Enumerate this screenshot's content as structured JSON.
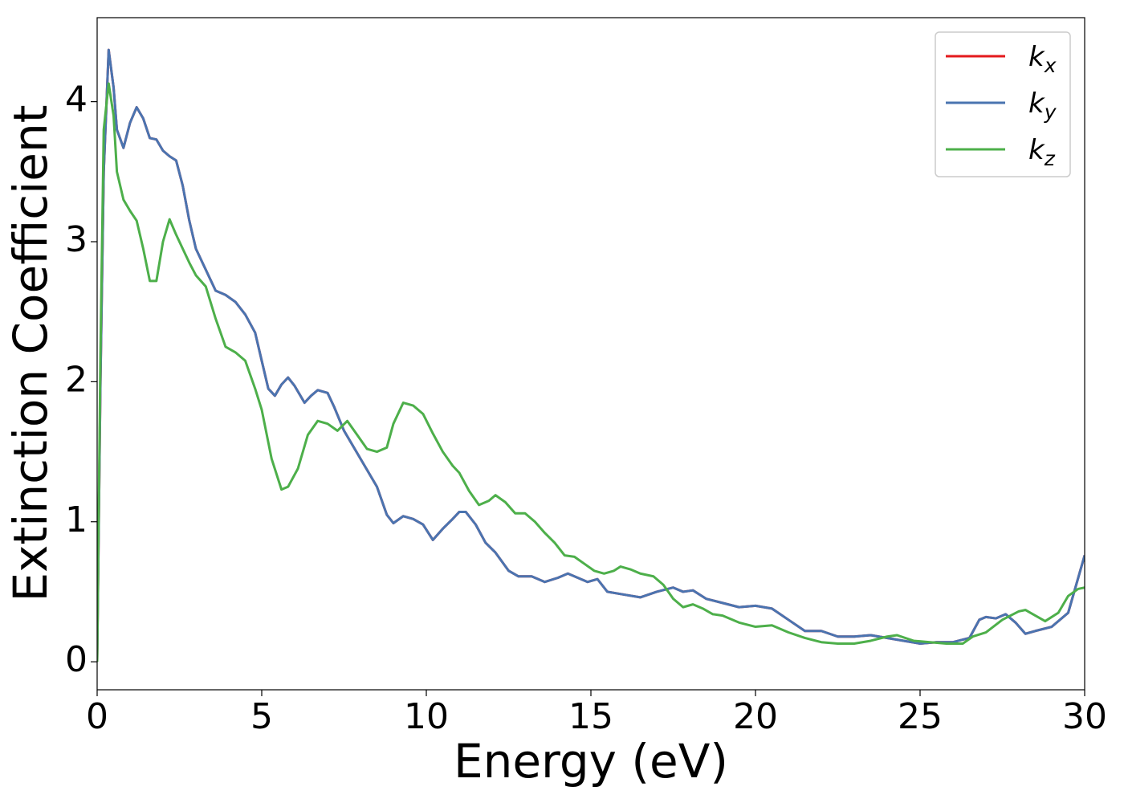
{
  "chart_data": {
    "type": "line",
    "xlabel": "Energy (eV)",
    "ylabel": "Extinction Coefficient",
    "xlim": [
      0,
      30
    ],
    "ylim": [
      -0.2,
      4.6
    ],
    "xticks": [
      0,
      5,
      10,
      15,
      20,
      25,
      30
    ],
    "yticks": [
      0,
      1,
      2,
      3,
      4
    ],
    "grid": false,
    "legend": "upper right",
    "series": [
      {
        "name": "kx",
        "color": "#e41a1c",
        "x": [
          0,
          0.1,
          0.2,
          0.35,
          0.5,
          0.6,
          0.8,
          1.0,
          1.2,
          1.4,
          1.6,
          1.8,
          2.0,
          2.2,
          2.4,
          2.6,
          2.8,
          3.0,
          3.3,
          3.6,
          3.9,
          4.2,
          4.5,
          4.8,
          5.0,
          5.2,
          5.4,
          5.6,
          5.8,
          6.0,
          6.3,
          6.5,
          6.7,
          7.0,
          7.2,
          7.5,
          8.0,
          8.5,
          8.8,
          9.0,
          9.3,
          9.6,
          9.9,
          10.2,
          10.5,
          10.8,
          11.0,
          11.2,
          11.5,
          11.8,
          12.1,
          12.5,
          12.8,
          13.2,
          13.6,
          14.0,
          14.3,
          14.6,
          14.9,
          15.2,
          15.5,
          16.0,
          16.5,
          17.0,
          17.5,
          17.8,
          18.1,
          18.5,
          19.0,
          19.5,
          20.0,
          20.5,
          21.0,
          21.5,
          22.0,
          22.5,
          23.0,
          23.5,
          24.0,
          24.5,
          25.0,
          25.5,
          26.0,
          26.5,
          26.8,
          27.0,
          27.3,
          27.6,
          27.9,
          28.2,
          28.5,
          29.0,
          29.5,
          30.0
        ],
        "values": [
          0,
          2.0,
          3.5,
          4.37,
          4.1,
          3.8,
          3.67,
          3.85,
          3.96,
          3.88,
          3.74,
          3.73,
          3.65,
          3.61,
          3.58,
          3.4,
          3.15,
          2.95,
          2.8,
          2.65,
          2.62,
          2.57,
          2.48,
          2.35,
          2.15,
          1.95,
          1.9,
          1.98,
          2.03,
          1.97,
          1.85,
          1.9,
          1.94,
          1.92,
          1.82,
          1.65,
          1.45,
          1.25,
          1.05,
          0.99,
          1.04,
          1.02,
          0.98,
          0.87,
          0.95,
          1.02,
          1.07,
          1.07,
          0.98,
          0.85,
          0.78,
          0.65,
          0.61,
          0.61,
          0.57,
          0.6,
          0.63,
          0.6,
          0.57,
          0.59,
          0.5,
          0.48,
          0.46,
          0.5,
          0.53,
          0.5,
          0.51,
          0.45,
          0.42,
          0.39,
          0.4,
          0.38,
          0.3,
          0.22,
          0.22,
          0.18,
          0.18,
          0.19,
          0.17,
          0.15,
          0.13,
          0.14,
          0.14,
          0.17,
          0.3,
          0.32,
          0.31,
          0.34,
          0.28,
          0.2,
          0.22,
          0.25,
          0.35,
          0.76
        ]
      },
      {
        "name": "ky",
        "color": "#4a74b0",
        "x": [
          0,
          0.1,
          0.2,
          0.35,
          0.5,
          0.6,
          0.8,
          1.0,
          1.2,
          1.4,
          1.6,
          1.8,
          2.0,
          2.2,
          2.4,
          2.6,
          2.8,
          3.0,
          3.3,
          3.6,
          3.9,
          4.2,
          4.5,
          4.8,
          5.0,
          5.2,
          5.4,
          5.6,
          5.8,
          6.0,
          6.3,
          6.5,
          6.7,
          7.0,
          7.2,
          7.5,
          8.0,
          8.5,
          8.8,
          9.0,
          9.3,
          9.6,
          9.9,
          10.2,
          10.5,
          10.8,
          11.0,
          11.2,
          11.5,
          11.8,
          12.1,
          12.5,
          12.8,
          13.2,
          13.6,
          14.0,
          14.3,
          14.6,
          14.9,
          15.2,
          15.5,
          16.0,
          16.5,
          17.0,
          17.5,
          17.8,
          18.1,
          18.5,
          19.0,
          19.5,
          20.0,
          20.5,
          21.0,
          21.5,
          22.0,
          22.5,
          23.0,
          23.5,
          24.0,
          24.5,
          25.0,
          25.5,
          26.0,
          26.5,
          26.8,
          27.0,
          27.3,
          27.6,
          27.9,
          28.2,
          28.5,
          29.0,
          29.5,
          30.0
        ],
        "values": [
          0,
          2.0,
          3.5,
          4.37,
          4.1,
          3.8,
          3.67,
          3.85,
          3.96,
          3.88,
          3.74,
          3.73,
          3.65,
          3.61,
          3.58,
          3.4,
          3.15,
          2.95,
          2.8,
          2.65,
          2.62,
          2.57,
          2.48,
          2.35,
          2.15,
          1.95,
          1.9,
          1.98,
          2.03,
          1.97,
          1.85,
          1.9,
          1.94,
          1.92,
          1.82,
          1.65,
          1.45,
          1.25,
          1.05,
          0.99,
          1.04,
          1.02,
          0.98,
          0.87,
          0.95,
          1.02,
          1.07,
          1.07,
          0.98,
          0.85,
          0.78,
          0.65,
          0.61,
          0.61,
          0.57,
          0.6,
          0.63,
          0.6,
          0.57,
          0.59,
          0.5,
          0.48,
          0.46,
          0.5,
          0.53,
          0.5,
          0.51,
          0.45,
          0.42,
          0.39,
          0.4,
          0.38,
          0.3,
          0.22,
          0.22,
          0.18,
          0.18,
          0.19,
          0.17,
          0.15,
          0.13,
          0.14,
          0.14,
          0.17,
          0.3,
          0.32,
          0.31,
          0.34,
          0.28,
          0.2,
          0.22,
          0.25,
          0.35,
          0.76
        ]
      },
      {
        "name": "kz",
        "color": "#4daf4a",
        "x": [
          0,
          0.1,
          0.2,
          0.35,
          0.5,
          0.6,
          0.8,
          1.0,
          1.2,
          1.4,
          1.6,
          1.8,
          2.0,
          2.2,
          2.4,
          2.6,
          2.8,
          3.0,
          3.3,
          3.6,
          3.9,
          4.2,
          4.5,
          4.8,
          5.0,
          5.3,
          5.6,
          5.8,
          6.1,
          6.4,
          6.7,
          7.0,
          7.3,
          7.6,
          7.9,
          8.2,
          8.5,
          8.8,
          9.0,
          9.3,
          9.6,
          9.9,
          10.2,
          10.5,
          10.8,
          11.0,
          11.3,
          11.6,
          11.9,
          12.1,
          12.4,
          12.7,
          13.0,
          13.3,
          13.6,
          13.9,
          14.2,
          14.5,
          14.8,
          15.1,
          15.4,
          15.7,
          15.9,
          16.2,
          16.5,
          16.9,
          17.2,
          17.5,
          17.8,
          18.1,
          18.4,
          18.7,
          19.0,
          19.5,
          20.0,
          20.5,
          21.0,
          21.5,
          22.0,
          22.5,
          23.0,
          23.5,
          24.0,
          24.3,
          24.8,
          25.3,
          25.8,
          26.3,
          26.6,
          27.0,
          27.5,
          28.0,
          28.2,
          28.5,
          28.8,
          29.2,
          29.5,
          29.8,
          30.0
        ],
        "values": [
          0,
          2.2,
          3.8,
          4.13,
          3.9,
          3.5,
          3.3,
          3.22,
          3.15,
          2.95,
          2.72,
          2.72,
          3.0,
          3.16,
          3.05,
          2.95,
          2.85,
          2.76,
          2.68,
          2.45,
          2.25,
          2.21,
          2.15,
          1.95,
          1.8,
          1.45,
          1.23,
          1.25,
          1.38,
          1.62,
          1.72,
          1.7,
          1.65,
          1.72,
          1.62,
          1.52,
          1.5,
          1.53,
          1.7,
          1.85,
          1.83,
          1.77,
          1.63,
          1.5,
          1.4,
          1.35,
          1.22,
          1.12,
          1.15,
          1.19,
          1.14,
          1.06,
          1.06,
          1.0,
          0.92,
          0.85,
          0.76,
          0.75,
          0.7,
          0.65,
          0.63,
          0.65,
          0.68,
          0.66,
          0.63,
          0.61,
          0.55,
          0.45,
          0.39,
          0.41,
          0.38,
          0.34,
          0.33,
          0.28,
          0.25,
          0.26,
          0.21,
          0.17,
          0.14,
          0.13,
          0.13,
          0.15,
          0.18,
          0.19,
          0.15,
          0.14,
          0.13,
          0.13,
          0.18,
          0.21,
          0.3,
          0.36,
          0.37,
          0.33,
          0.29,
          0.35,
          0.47,
          0.52,
          0.53
        ]
      }
    ]
  }
}
